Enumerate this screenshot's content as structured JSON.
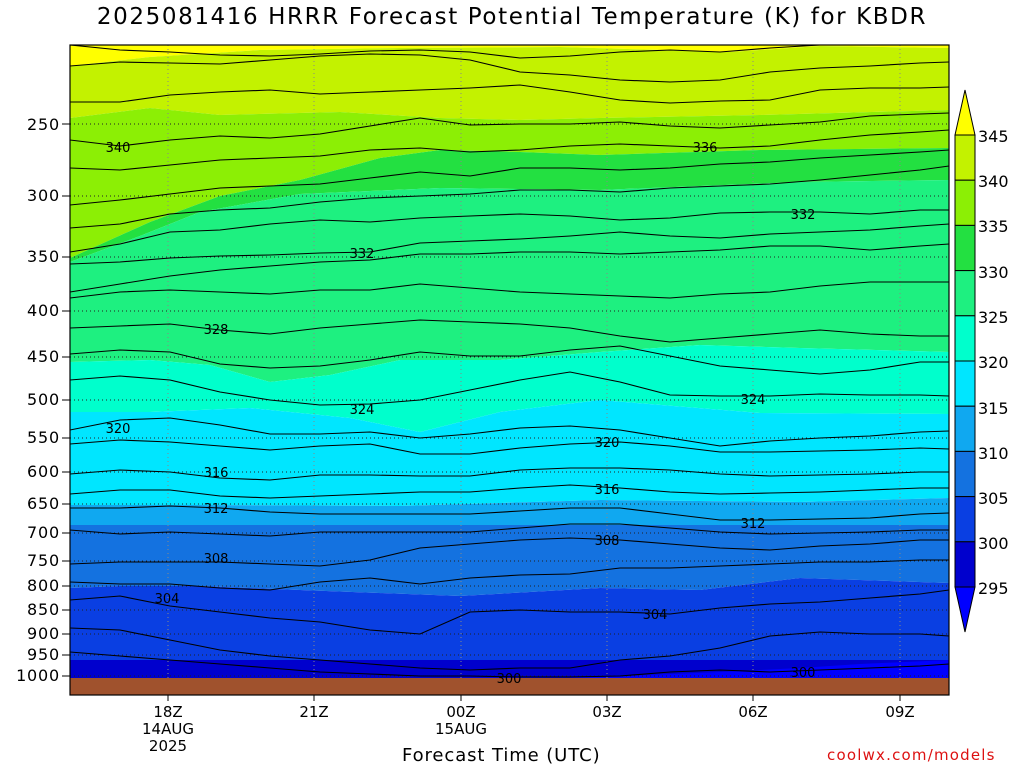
{
  "title": "2025081416 HRRR Forecast Potential Temperature (K) for KBDR",
  "footer": {
    "credit": "coolwx.com/models"
  },
  "chart_data": {
    "type": "heatmap",
    "title": "2025081416 HRRR Forecast Potential Temperature (K) for KBDR",
    "xlabel": "Forecast Time (UTC)",
    "ylabel": "",
    "x_range_hours": [
      -2,
      16
    ],
    "y_range_hPa": [
      1030,
      180
    ],
    "y_ticks": [
      "250",
      "300",
      "350",
      "400",
      "450",
      "500",
      "550",
      "600",
      "650",
      "700",
      "750",
      "800",
      "850",
      "900",
      "950",
      "1000"
    ],
    "x_ticks": [
      {
        "label": "18Z",
        "sub": [
          "14AUG",
          "2025"
        ],
        "hour": 0
      },
      {
        "label": "21Z",
        "sub": [],
        "hour": 3
      },
      {
        "label": "00Z",
        "sub": [
          "15AUG"
        ],
        "hour": 6
      },
      {
        "label": "03Z",
        "sub": [],
        "hour": 9
      },
      {
        "label": "06Z",
        "sub": [],
        "hour": 12
      },
      {
        "label": "09Z",
        "sub": [],
        "hour": 15
      }
    ],
    "grid": true,
    "colorbar": {
      "levels": [
        "295",
        "300",
        "305",
        "310",
        "315",
        "320",
        "325",
        "330",
        "335",
        "340",
        "345"
      ],
      "colors": [
        "#0000ff",
        "#0000cd",
        "#0a3fe2",
        "#1472e0",
        "#10a8f0",
        "#00e6ff",
        "#00ffcc",
        "#1ef080",
        "#23e041",
        "#8cef05",
        "#c3f200",
        "#ffff00"
      ]
    },
    "contour_labels": [
      "340",
      "336",
      "332",
      "332",
      "328",
      "324",
      "324",
      "320",
      "320",
      "316",
      "316",
      "312",
      "312",
      "308",
      "308",
      "304",
      "304",
      "300",
      "300"
    ],
    "ground_color": "#a0522d"
  }
}
